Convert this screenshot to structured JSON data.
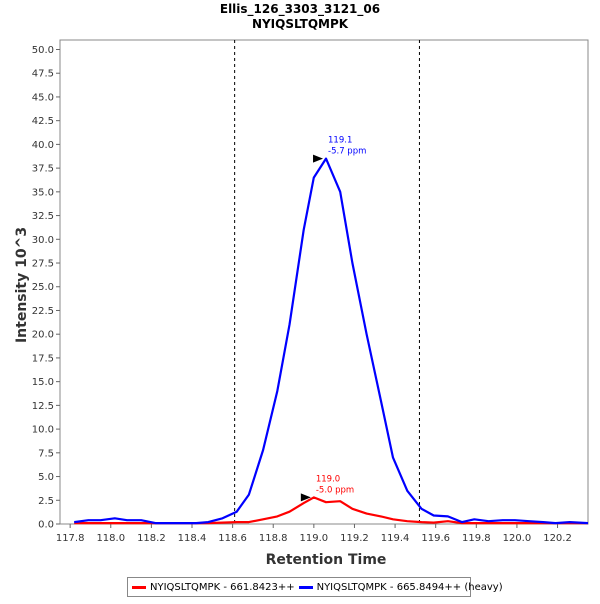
{
  "chart_data": {
    "type": "line",
    "title": "Ellis_126_3303_3121_06",
    "subtitle": "NYIQSLTQMPK",
    "xlabel": "Retention Time",
    "ylabel": "Intensity 10^3",
    "xlim": [
      117.75,
      120.35
    ],
    "ylim": [
      0,
      51
    ],
    "x_ticks": [
      "117.8",
      "118.0",
      "118.2",
      "118.4",
      "118.6",
      "118.8",
      "119.0",
      "119.2",
      "119.4",
      "119.6",
      "119.8",
      "120.0",
      "120.2"
    ],
    "y_ticks": [
      "0.0",
      "2.5",
      "5.0",
      "7.5",
      "10.0",
      "12.5",
      "15.0",
      "17.5",
      "20.0",
      "22.5",
      "25.0",
      "27.5",
      "30.0",
      "32.5",
      "35.0",
      "37.5",
      "40.0",
      "42.5",
      "45.0",
      "47.5",
      "50.0"
    ],
    "grid": false,
    "boundaries": [
      118.61,
      119.52
    ],
    "series": [
      {
        "name": "NYIQSLTQMPK - 661.8423++",
        "color": "#ff0000",
        "x": [
          117.82,
          117.89,
          117.95,
          118.02,
          118.08,
          118.15,
          118.22,
          118.28,
          118.35,
          118.42,
          118.48,
          118.55,
          118.62,
          118.68,
          118.75,
          118.82,
          118.88,
          118.95,
          119.0,
          119.06,
          119.13,
          119.19,
          119.26,
          119.33,
          119.39,
          119.46,
          119.53,
          119.59,
          119.66,
          119.73,
          119.79,
          119.86,
          119.93,
          119.99,
          120.06,
          120.13,
          120.19,
          120.26,
          120.35
        ],
        "values": [
          0.1,
          0.1,
          0.1,
          0.1,
          0.1,
          0.1,
          0.1,
          0.1,
          0.1,
          0.1,
          0.1,
          0.15,
          0.2,
          0.2,
          0.5,
          0.8,
          1.3,
          2.2,
          2.8,
          2.3,
          2.4,
          1.6,
          1.1,
          0.8,
          0.5,
          0.3,
          0.2,
          0.15,
          0.3,
          0.1,
          0.1,
          0.1,
          0.1,
          0.1,
          0.1,
          0.1,
          0.1,
          0.1,
          0.1
        ]
      },
      {
        "name": "NYIQSLTQMPK - 665.8494++ (heavy)",
        "color": "#0000ff",
        "x": [
          117.82,
          117.89,
          117.95,
          118.02,
          118.08,
          118.15,
          118.22,
          118.28,
          118.35,
          118.42,
          118.48,
          118.55,
          118.62,
          118.68,
          118.75,
          118.82,
          118.88,
          118.95,
          119.0,
          119.06,
          119.13,
          119.19,
          119.26,
          119.33,
          119.39,
          119.46,
          119.53,
          119.59,
          119.66,
          119.73,
          119.79,
          119.86,
          119.93,
          119.99,
          120.06,
          120.13,
          120.19,
          120.26,
          120.35
        ],
        "values": [
          0.2,
          0.4,
          0.4,
          0.6,
          0.4,
          0.4,
          0.1,
          0.1,
          0.1,
          0.1,
          0.2,
          0.6,
          1.3,
          3.1,
          7.8,
          14.0,
          21.0,
          31.0,
          36.5,
          38.5,
          35.0,
          27.5,
          20.0,
          13.0,
          7.0,
          3.5,
          1.6,
          0.9,
          0.8,
          0.2,
          0.5,
          0.3,
          0.4,
          0.4,
          0.3,
          0.2,
          0.1,
          0.2,
          0.1
        ]
      }
    ],
    "annotations": [
      {
        "x": 119.06,
        "y": 38.5,
        "line1": "119.1",
        "line2": "-5.7 ppm",
        "color": "#0000ff"
      },
      {
        "x": 119.0,
        "y": 2.8,
        "line1": "119.0",
        "line2": "-5.0 ppm",
        "color": "#ff0000"
      }
    ],
    "legend": {
      "position": "bottom",
      "entries": [
        {
          "label": "NYIQSLTQMPK - 661.8423++",
          "color": "#ff0000"
        },
        {
          "label": "NYIQSLTQMPK - 665.8494++ (heavy)",
          "color": "#0000ff"
        }
      ]
    }
  }
}
